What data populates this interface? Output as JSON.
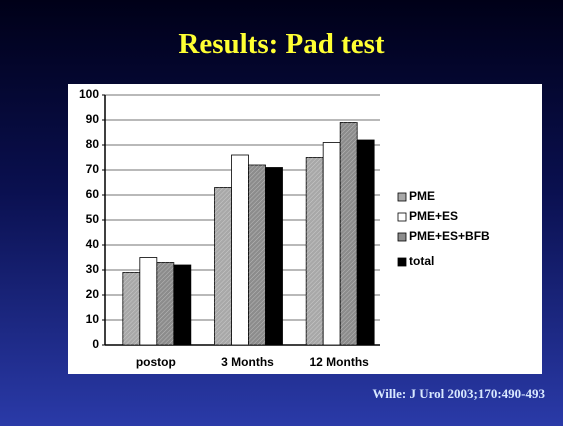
{
  "title": "Results:  Pad test",
  "citation": "Wille: J Urol 2003;170:490-493",
  "chart_data": {
    "type": "bar",
    "categories": [
      "postop",
      "3 Months",
      "12 Months"
    ],
    "series": [
      {
        "name": "PME",
        "color": "#a8a8a8",
        "values": [
          29,
          63,
          75
        ]
      },
      {
        "name": "PME+ES",
        "color": "#ffffff",
        "values": [
          35,
          76,
          81
        ]
      },
      {
        "name": "PME+ES+BFB",
        "color": "#8c8c8c",
        "values": [
          33,
          72,
          89
        ]
      },
      {
        "name": "total",
        "color": "#000000",
        "values": [
          32,
          71,
          82
        ]
      }
    ],
    "ylim": [
      0,
      100
    ],
    "yticks": [
      0,
      10,
      20,
      30,
      40,
      50,
      60,
      70,
      80,
      90,
      100
    ],
    "grid": true,
    "legend": "right"
  }
}
